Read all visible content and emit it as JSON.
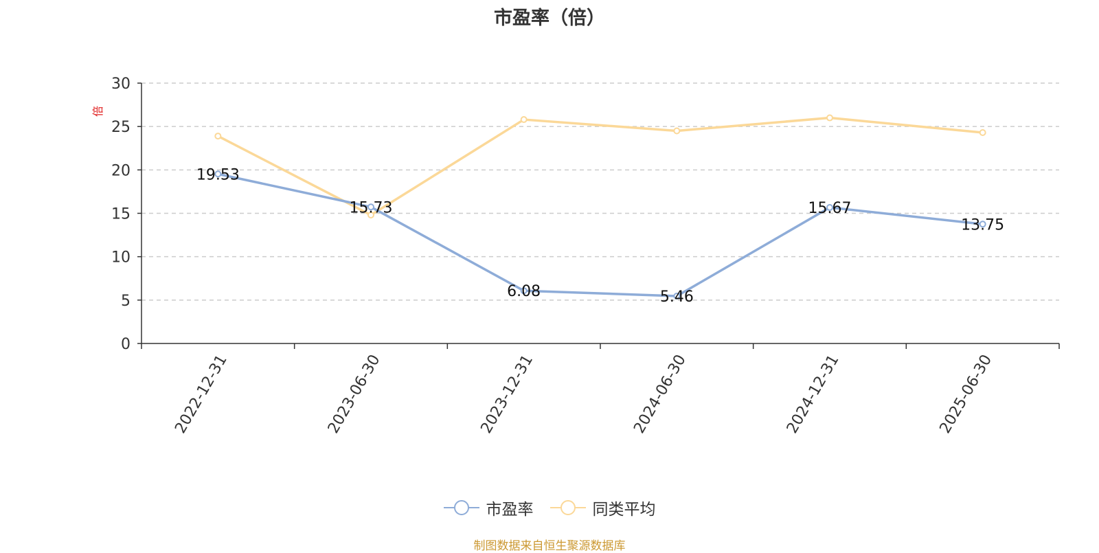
{
  "chart_data": {
    "type": "line",
    "title": "市盈率（倍）",
    "ylabel": "倍",
    "xlabel": "",
    "categories": [
      "2022-12-31",
      "2023-06-30",
      "2023-12-31",
      "2024-06-30",
      "2024-12-31",
      "2025-06-30"
    ],
    "ylim": [
      0,
      30
    ],
    "yticks": [
      0,
      5,
      10,
      15,
      20,
      25,
      30
    ],
    "grid": true,
    "legend_position": "bottom-center",
    "series": [
      {
        "name": "市盈率",
        "color": "#8eacd8",
        "values": [
          19.53,
          15.73,
          6.08,
          5.46,
          15.67,
          13.75
        ],
        "labels": [
          "19.53",
          "15.73",
          "6.08",
          "5.46",
          "15.67",
          "13.75"
        ]
      },
      {
        "name": "同类平均",
        "color": "#fbd898",
        "values": [
          23.9,
          14.8,
          25.8,
          24.5,
          26.0,
          24.3
        ]
      }
    ]
  },
  "source_note": "制图数据来自恒生聚源数据库"
}
